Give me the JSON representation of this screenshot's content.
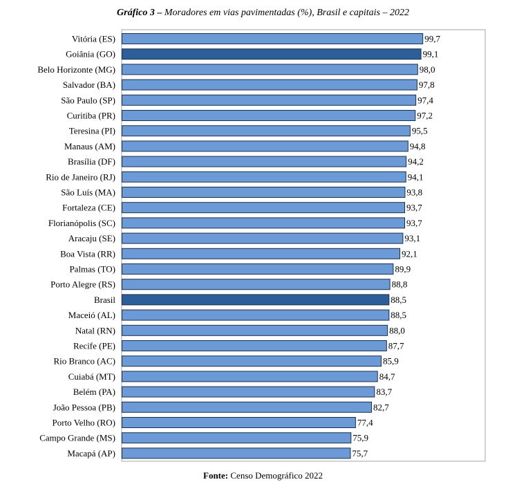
{
  "title": {
    "lead": "Gráfico 3 –",
    "text": "Moradores em vias pavimentadas (%), Brasil e capitais – 2022"
  },
  "source": {
    "lead": "Fonte:",
    "text": "Censo Demográfico 2022"
  },
  "colors": {
    "bar": "#6b9ad6",
    "bar_highlight": "#2c5f99",
    "bar_stroke": "#1b2f4a",
    "frame": "#a6a6a6"
  },
  "chart_data": {
    "type": "bar",
    "orientation": "horizontal",
    "xlim": [
      0,
      100
    ],
    "grid": false,
    "highlighted": [
      "Goiânia (GO)",
      "Brasil"
    ],
    "categories": [
      "Vitória (ES)",
      "Goiânia (GO)",
      "Belo Horizonte (MG)",
      "Salvador (BA)",
      "São Paulo (SP)",
      "Curitiba (PR)",
      "Teresina (PI)",
      "Manaus (AM)",
      "Brasília (DF)",
      "Rio de Janeiro (RJ)",
      "São Luís (MA)",
      "Fortaleza (CE)",
      "Florianópolis (SC)",
      "Aracaju (SE)",
      "Boa Vista (RR)",
      "Palmas (TO)",
      "Porto Alegre (RS)",
      "Brasil",
      "Maceió (AL)",
      "Natal (RN)",
      "Recife (PE)",
      "Rio Branco (AC)",
      "Cuiabá (MT)",
      "Belém (PA)",
      "João Pessoa (PB)",
      "Porto Velho (RO)",
      "Campo Grande (MS)",
      "Macapá (AP)"
    ],
    "values": [
      99.7,
      99.1,
      98.0,
      97.8,
      97.4,
      97.2,
      95.5,
      94.8,
      94.2,
      94.1,
      93.8,
      93.7,
      93.7,
      93.1,
      92.1,
      89.9,
      88.8,
      88.5,
      88.5,
      88.0,
      87.7,
      85.9,
      84.7,
      83.7,
      82.7,
      77.4,
      75.9,
      75.7
    ],
    "value_labels": [
      "99,7",
      "99,1",
      "98,0",
      "97,8",
      "97,4",
      "97,2",
      "95,5",
      "94,8",
      "94,2",
      "94,1",
      "93,8",
      "93,7",
      "93,7",
      "93,1",
      "92,1",
      "89,9",
      "88,8",
      "88,5",
      "88,5",
      "88,0",
      "87,7",
      "85,9",
      "84,7",
      "83,7",
      "82,7",
      "77,4",
      "75,9",
      "75,7"
    ]
  }
}
